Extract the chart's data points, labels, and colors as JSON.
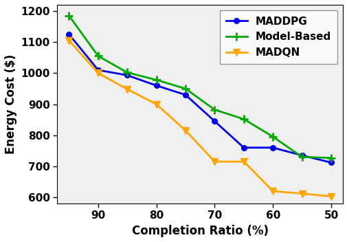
{
  "x": [
    95,
    90,
    85,
    80,
    75,
    70,
    65,
    60,
    55,
    50
  ],
  "MADDPG": [
    1125,
    1010,
    993,
    960,
    930,
    845,
    760,
    760,
    735,
    712
  ],
  "ModelBased": [
    1185,
    1055,
    1002,
    978,
    950,
    882,
    852,
    795,
    730,
    727
  ],
  "MADQN": [
    1105,
    1000,
    948,
    900,
    815,
    715,
    715,
    620,
    612,
    603
  ],
  "MADDPG_color": "#0000ee",
  "ModelBased_color": "#00aa00",
  "MADQN_color": "#ffa500",
  "xlabel": "Completion Ratio (%)",
  "ylabel": "Energy Cost ($)",
  "ylim": [
    580,
    1220
  ],
  "xlim": [
    48,
    97
  ],
  "yticks": [
    600,
    700,
    800,
    900,
    1000,
    1100,
    1200
  ],
  "xticks": [
    90,
    80,
    70,
    60,
    50
  ],
  "xtick_labels": [
    "90",
    "80",
    "70",
    "60",
    "50"
  ],
  "legend_labels": [
    "MADDPG",
    "Model-Based",
    "MADQN"
  ],
  "label_fontsize": 12,
  "tick_fontsize": 11,
  "legend_fontsize": 11
}
